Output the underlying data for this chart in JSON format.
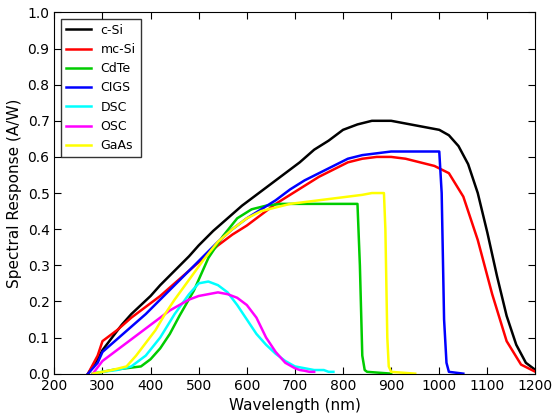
{
  "xlabel": "Wavelength (nm)",
  "ylabel": "Spectral Response (A/W)",
  "xlim": [
    200,
    1200
  ],
  "ylim": [
    0,
    1
  ],
  "xticks": [
    200,
    300,
    400,
    500,
    600,
    700,
    800,
    900,
    1000,
    1100,
    1200
  ],
  "yticks": [
    0,
    0.1,
    0.2,
    0.3,
    0.4,
    0.5,
    0.6,
    0.7,
    0.8,
    0.9,
    1.0
  ],
  "series": {
    "c-Si": {
      "color": "#000000",
      "lw": 1.8,
      "wavelengths": [
        270,
        290,
        300,
        320,
        340,
        360,
        380,
        400,
        420,
        450,
        480,
        500,
        530,
        560,
        590,
        620,
        650,
        680,
        710,
        740,
        770,
        800,
        830,
        860,
        880,
        900,
        920,
        940,
        960,
        980,
        1000,
        1020,
        1040,
        1060,
        1080,
        1100,
        1120,
        1140,
        1160,
        1180,
        1200
      ],
      "sr": [
        0.0,
        0.04,
        0.065,
        0.1,
        0.135,
        0.165,
        0.19,
        0.215,
        0.245,
        0.285,
        0.325,
        0.355,
        0.395,
        0.43,
        0.465,
        0.495,
        0.525,
        0.555,
        0.585,
        0.62,
        0.645,
        0.675,
        0.69,
        0.7,
        0.7,
        0.7,
        0.695,
        0.69,
        0.685,
        0.68,
        0.675,
        0.66,
        0.63,
        0.58,
        0.5,
        0.39,
        0.27,
        0.16,
        0.08,
        0.03,
        0.01
      ]
    },
    "mc-Si": {
      "color": "#ff0000",
      "lw": 1.8,
      "wavelengths": [
        270,
        290,
        300,
        330,
        360,
        390,
        420,
        450,
        480,
        510,
        540,
        570,
        600,
        630,
        660,
        690,
        720,
        750,
        780,
        810,
        840,
        870,
        900,
        930,
        960,
        990,
        1020,
        1050,
        1080,
        1110,
        1140,
        1170,
        1200
      ],
      "sr": [
        0.0,
        0.05,
        0.09,
        0.12,
        0.155,
        0.185,
        0.215,
        0.25,
        0.285,
        0.32,
        0.355,
        0.385,
        0.41,
        0.44,
        0.47,
        0.495,
        0.52,
        0.545,
        0.565,
        0.585,
        0.595,
        0.6,
        0.6,
        0.595,
        0.585,
        0.575,
        0.555,
        0.49,
        0.37,
        0.22,
        0.09,
        0.025,
        0.005
      ]
    },
    "CdTe": {
      "color": "#00cc00",
      "lw": 1.8,
      "wavelengths": [
        280,
        300,
        320,
        350,
        380,
        400,
        420,
        440,
        460,
        490,
        520,
        550,
        580,
        610,
        640,
        670,
        700,
        730,
        760,
        790,
        810,
        820,
        830,
        835,
        840,
        845,
        850,
        900
      ],
      "sr": [
        0.0,
        0.005,
        0.01,
        0.015,
        0.02,
        0.04,
        0.07,
        0.11,
        0.16,
        0.23,
        0.32,
        0.38,
        0.43,
        0.455,
        0.465,
        0.47,
        0.47,
        0.47,
        0.47,
        0.47,
        0.47,
        0.47,
        0.47,
        0.3,
        0.05,
        0.01,
        0.005,
        0.0
      ]
    },
    "CIGS": {
      "color": "#0000ff",
      "lw": 1.8,
      "wavelengths": [
        270,
        290,
        300,
        330,
        360,
        390,
        420,
        450,
        480,
        510,
        540,
        570,
        600,
        630,
        660,
        690,
        720,
        750,
        780,
        810,
        840,
        870,
        900,
        930,
        960,
        990,
        1000,
        1005,
        1010,
        1015,
        1020,
        1050
      ],
      "sr": [
        0.0,
        0.03,
        0.06,
        0.095,
        0.13,
        0.165,
        0.205,
        0.245,
        0.285,
        0.325,
        0.365,
        0.4,
        0.43,
        0.455,
        0.48,
        0.51,
        0.535,
        0.555,
        0.575,
        0.595,
        0.605,
        0.61,
        0.615,
        0.615,
        0.615,
        0.615,
        0.615,
        0.5,
        0.15,
        0.03,
        0.005,
        0.0
      ]
    },
    "DSC": {
      "color": "#00ffff",
      "lw": 1.8,
      "wavelengths": [
        280,
        300,
        330,
        360,
        390,
        420,
        450,
        480,
        500,
        520,
        540,
        560,
        580,
        600,
        620,
        640,
        660,
        680,
        700,
        720,
        740,
        750,
        760,
        770,
        780
      ],
      "sr": [
        0.0,
        0.005,
        0.01,
        0.02,
        0.05,
        0.1,
        0.165,
        0.22,
        0.25,
        0.255,
        0.245,
        0.225,
        0.19,
        0.15,
        0.11,
        0.08,
        0.055,
        0.035,
        0.02,
        0.015,
        0.01,
        0.01,
        0.01,
        0.005,
        0.005
      ]
    },
    "OSC": {
      "color": "#ff00ff",
      "lw": 1.8,
      "wavelengths": [
        280,
        300,
        320,
        340,
        360,
        380,
        400,
        420,
        440,
        460,
        480,
        500,
        520,
        540,
        560,
        580,
        600,
        620,
        640,
        660,
        680,
        700,
        710,
        720,
        730,
        740
      ],
      "sr": [
        0.0,
        0.035,
        0.055,
        0.075,
        0.095,
        0.115,
        0.135,
        0.155,
        0.175,
        0.19,
        0.205,
        0.215,
        0.22,
        0.225,
        0.22,
        0.21,
        0.19,
        0.155,
        0.1,
        0.06,
        0.03,
        0.015,
        0.01,
        0.008,
        0.005,
        0.005
      ]
    },
    "GaAs": {
      "color": "#ffff00",
      "lw": 1.8,
      "wavelengths": [
        280,
        300,
        320,
        350,
        370,
        390,
        410,
        430,
        450,
        480,
        510,
        540,
        570,
        600,
        630,
        660,
        690,
        720,
        750,
        780,
        810,
        840,
        860,
        875,
        885,
        888,
        892,
        895,
        900,
        950
      ],
      "sr": [
        0.0,
        0.005,
        0.01,
        0.02,
        0.05,
        0.085,
        0.12,
        0.165,
        0.205,
        0.26,
        0.315,
        0.365,
        0.4,
        0.43,
        0.45,
        0.46,
        0.47,
        0.475,
        0.48,
        0.485,
        0.49,
        0.495,
        0.5,
        0.5,
        0.5,
        0.4,
        0.1,
        0.02,
        0.005,
        0.0
      ]
    }
  },
  "legend_loc": "upper left",
  "background_color": "#ffffff"
}
